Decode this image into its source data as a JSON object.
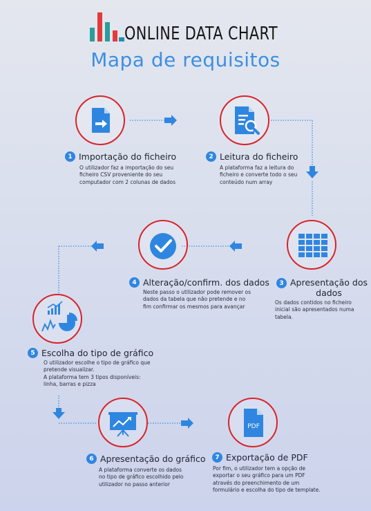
{
  "header": {
    "brand": "ONLINE DATA CHART",
    "subtitle": "Mapa de requisitos",
    "logo_icon": "bar-chart-logo-icon"
  },
  "colors": {
    "accent_blue": "#2f86e0",
    "circle_red": "#d8232a",
    "connector_blue": "#3a8fe4"
  },
  "steps": [
    {
      "number": "1",
      "title": "Importação do ficheiro",
      "icon": "file-import-icon",
      "description": [
        "O utilizador faz a importação do seu",
        "ficheiro CSV proveniente do seu",
        "computador com 2 colunas de dados"
      ]
    },
    {
      "number": "2",
      "title": "Leitura do ficheiro",
      "icon": "document-search-icon",
      "description": [
        "A plataforma faz a leitura do",
        "ficheiro e converte todo o seu",
        "conteúdo num array"
      ]
    },
    {
      "number": "3",
      "title": "Apresentação dos dados",
      "title_lines": [
        "Apresentação dos",
        "dados"
      ],
      "icon": "table-grid-icon",
      "description": [
        "Os dados contidos no ficheiro",
        "inicial são apresentados numa",
        "tabela."
      ]
    },
    {
      "number": "4",
      "title": "Alteração/confirm. dos dados",
      "icon": "checkmark-icon",
      "description": [
        "Neste passo o utilizador pode remover os",
        "dados da tabela que não pretende e no",
        "fim confirmar os mesmos para avançar"
      ]
    },
    {
      "number": "5",
      "title": "Escolha do tipo de gráfico",
      "icon": "chart-types-icon",
      "description": [
        "O utilizador escolhe o tipo de gráfico que",
        "pretende visualizar.",
        "A plataforma tem 3 tipos disponíveis:",
        "linha, barras e pizza"
      ]
    },
    {
      "number": "6",
      "title": "Apresentação do gráfico",
      "icon": "presentation-board-icon",
      "description": [
        "A plataforma converte os dados",
        "no tipo de gráfico escolhido pelo",
        "utilizador no passo anterior"
      ]
    },
    {
      "number": "7",
      "title": "Exportação de PDF",
      "icon": "pdf-file-icon",
      "icon_text": "PDF",
      "description": [
        "Por fim, o utilizador tem a opção de",
        "exportar o seu gráfico para um PDF",
        "através do preenchimento de um",
        "formulário e escolha do tipo de template."
      ]
    }
  ]
}
